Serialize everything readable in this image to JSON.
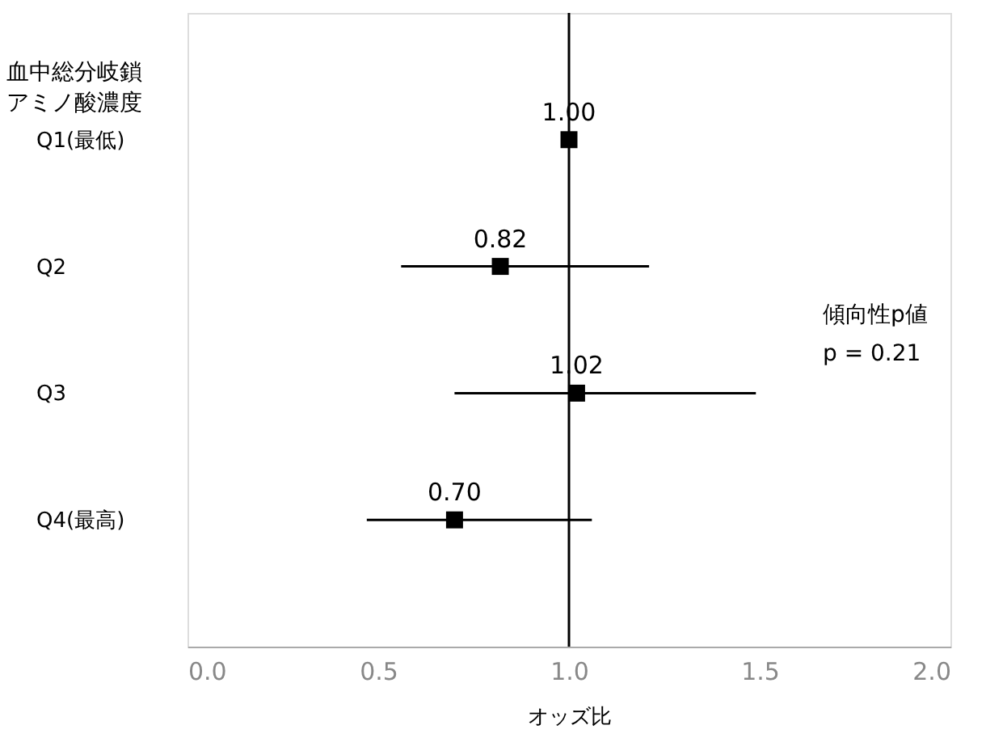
{
  "chart_data": {
    "type": "scatter",
    "orientation": "horizontal",
    "ylabel": "血中総分岐鎖アミノ酸濃度",
    "xlabel": "オッズ比",
    "categories": [
      "Q1(最低)",
      "Q2",
      "Q3",
      "Q4(最高)"
    ],
    "series": [
      {
        "color": "#000000",
        "values": [
          1.0,
          0.82,
          1.02,
          0.7
        ],
        "errors": [
          null,
          [
            0.56,
            1.21
          ],
          [
            0.7,
            1.49
          ],
          [
            0.47,
            1.06
          ]
        ],
        "value_labels": [
          "1.00",
          "0.82",
          "1.02",
          "0.70"
        ]
      }
    ],
    "xlim": [
      0,
      2
    ],
    "xticks": [
      {
        "value": 0,
        "label": "0.0"
      },
      0.5,
      {
        "value": 1,
        "label": "1.0"
      },
      1.5,
      {
        "value": 2,
        "label": "2.0"
      }
    ],
    "ref_lines": [
      {
        "axis": "x",
        "value": 1.0,
        "label": null,
        "color": "#000000"
      }
    ],
    "annotations": [
      "傾向性p値",
      "p = 0.21"
    ],
    "marker": "square",
    "grid": false
  }
}
